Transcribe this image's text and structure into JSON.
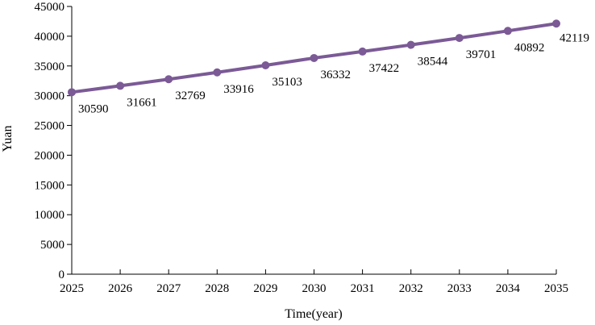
{
  "chart_data": {
    "type": "line",
    "title": "",
    "xlabel": "Time(year)",
    "ylabel": "Yuan",
    "x": [
      2025,
      2026,
      2027,
      2028,
      2029,
      2030,
      2031,
      2032,
      2033,
      2034,
      2035
    ],
    "series": [
      {
        "values": [
          30590,
          31661,
          32769,
          33916,
          35103,
          36332,
          37422,
          38544,
          39701,
          40892,
          42119
        ],
        "color": "#7b5a96"
      }
    ],
    "xlim": [
      2025,
      2035
    ],
    "ylim": [
      0,
      45000
    ],
    "yticks": [
      0,
      5000,
      10000,
      15000,
      20000,
      25000,
      30000,
      35000,
      40000,
      45000
    ],
    "xticks": [
      2025,
      2026,
      2027,
      2028,
      2029,
      2030,
      2031,
      2032,
      2033,
      2034,
      2035
    ],
    "grid": false,
    "legend": "none",
    "data_labels": true
  }
}
